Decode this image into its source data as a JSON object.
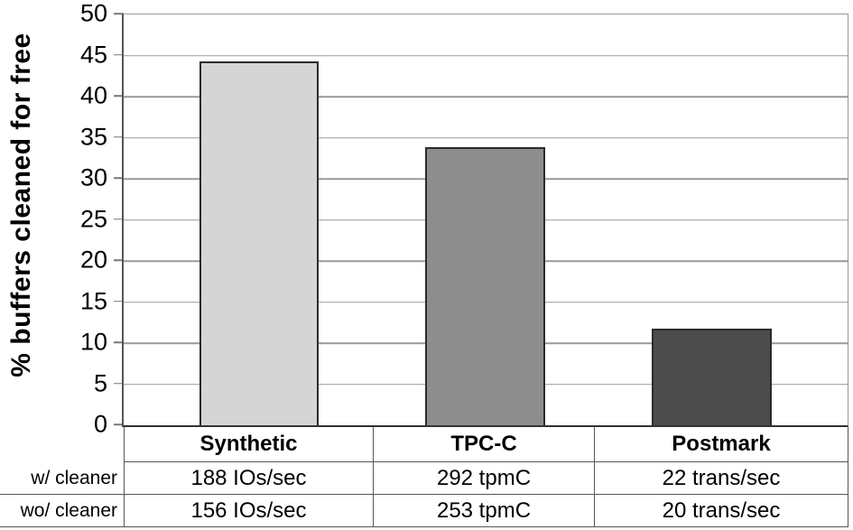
{
  "chart_data": {
    "type": "bar",
    "title": "",
    "xlabel": "",
    "ylabel": "% buffers cleaned for free",
    "ylim": [
      0,
      50
    ],
    "yticks": [
      0,
      5,
      10,
      15,
      20,
      25,
      30,
      35,
      40,
      45,
      50
    ],
    "grid": true,
    "legend": false,
    "categories": [
      "Synthetic",
      "TPC-C",
      "Postmark"
    ],
    "values": [
      44.3,
      33.8,
      11.8
    ],
    "bar_colors": [
      "#d5d5d5",
      "#8d8d8d",
      "#4c4c4c"
    ]
  },
  "table": {
    "columns": [
      "Synthetic",
      "TPC-C",
      "Postmark"
    ],
    "rows": [
      {
        "label": "w/ cleaner",
        "cells": [
          "188 IOs/sec",
          "292 tpmC",
          "22 trans/sec"
        ]
      },
      {
        "label": "wo/ cleaner",
        "cells": [
          "156 IOs/sec",
          "253 tpmC",
          "20 trans/sec"
        ]
      }
    ]
  }
}
